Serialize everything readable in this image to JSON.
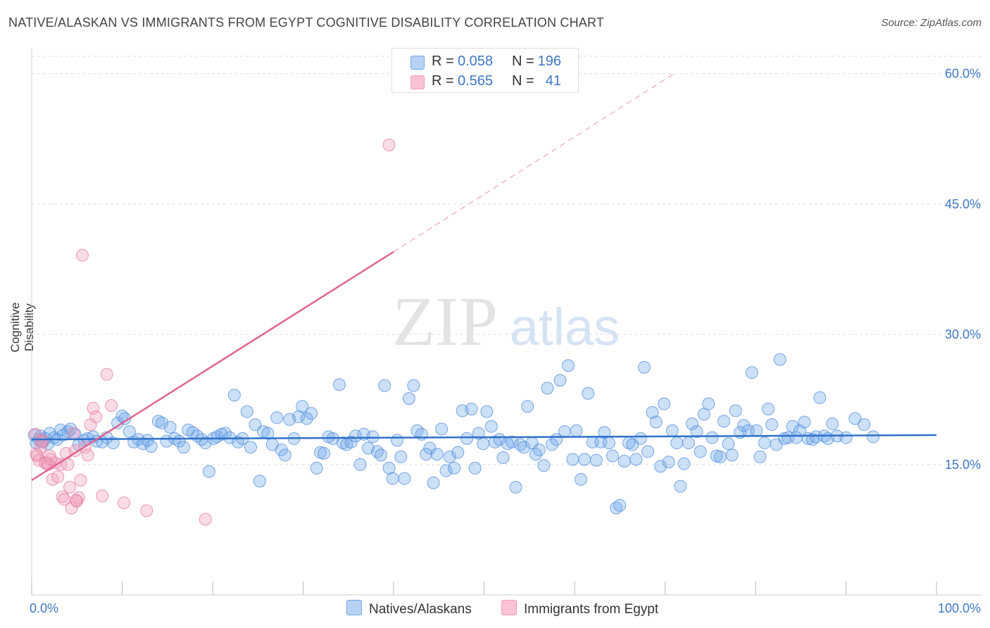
{
  "title": "NATIVE/ALASKAN VS IMMIGRANTS FROM EGYPT COGNITIVE DISABILITY CORRELATION CHART",
  "source": "Source: ZipAtlas.com",
  "watermark": {
    "zip": "ZIP",
    "atlas": "atlas"
  },
  "colors": {
    "blue": "#6ea6e8",
    "blue_line": "#2f72c9",
    "pink": "#f29bb8",
    "pink_line": "#e0648f",
    "grid": "#dddddd",
    "axis_text": "#3b78c4"
  },
  "legend_top": {
    "rows": [
      {
        "r_label": "R =",
        "r": "0.058",
        "n_label": "N =",
        "n": "196"
      },
      {
        "r_label": "R =",
        "r": "0.565",
        "n_label": "N =",
        "n": "41"
      }
    ]
  },
  "legend_bottom": [
    {
      "label": "Natives/Alaskans"
    },
    {
      "label": "Immigrants from Egypt"
    }
  ],
  "chart_data": {
    "type": "scatter",
    "title": "NATIVE/ALASKAN VS IMMIGRANTS FROM EGYPT COGNITIVE DISABILITY CORRELATION CHART",
    "xlabel": "",
    "ylabel": "Cognitive Disability",
    "xlim": [
      0,
      100
    ],
    "ylim": [
      0,
      62
    ],
    "x_tick_labels": [
      {
        "value": 0,
        "label": "0.0%"
      },
      {
        "value": 100,
        "label": "100.0%"
      }
    ],
    "y_tick_labels": [
      {
        "value": 15,
        "label": "15.0%"
      },
      {
        "value": 30,
        "label": "30.0%"
      },
      {
        "value": 45,
        "label": "45.0%"
      },
      {
        "value": 60,
        "label": "60.0%"
      }
    ],
    "series": [
      {
        "name": "Natives/Alaskans",
        "trend": {
          "x0": 0,
          "y0": 17.9,
          "x1": 100,
          "y1": 18.4
        },
        "points": [
          [
            0.3,
            18.4
          ],
          [
            0.5,
            17.5
          ],
          [
            0.8,
            17.9
          ],
          [
            1.0,
            18.3
          ],
          [
            1.2,
            17.6
          ],
          [
            1.5,
            18.0
          ],
          [
            1.8,
            17.4
          ],
          [
            2.0,
            18.6
          ],
          [
            2.5,
            18.1
          ],
          [
            2.8,
            17.9
          ],
          [
            3.2,
            19.0
          ],
          [
            3.5,
            18.4
          ],
          [
            4.0,
            18.8
          ],
          [
            4.3,
            19.1
          ],
          [
            4.8,
            18.5
          ],
          [
            5.2,
            17.3
          ],
          [
            5.8,
            17.8
          ],
          [
            6.2,
            18.0
          ],
          [
            6.8,
            18.2
          ],
          [
            7.2,
            17.7
          ],
          [
            7.8,
            17.6
          ],
          [
            8.3,
            18.1
          ],
          [
            9.0,
            17.5
          ],
          [
            9.5,
            19.8
          ],
          [
            10.0,
            20.6
          ],
          [
            10.3,
            20.3
          ],
          [
            10.8,
            18.8
          ],
          [
            11.3,
            17.6
          ],
          [
            11.8,
            17.9
          ],
          [
            12.3,
            17.4
          ],
          [
            12.8,
            17.8
          ],
          [
            13.2,
            17.1
          ],
          [
            14.0,
            20.0
          ],
          [
            14.4,
            19.8
          ],
          [
            14.9,
            17.7
          ],
          [
            15.3,
            19.3
          ],
          [
            15.8,
            18.0
          ],
          [
            16.3,
            17.7
          ],
          [
            16.8,
            17.0
          ],
          [
            17.3,
            19.0
          ],
          [
            17.8,
            18.7
          ],
          [
            18.3,
            18.3
          ],
          [
            18.8,
            17.9
          ],
          [
            19.2,
            17.5
          ],
          [
            19.6,
            14.2
          ],
          [
            20.1,
            18.0
          ],
          [
            20.5,
            18.2
          ],
          [
            21.0,
            18.5
          ],
          [
            21.4,
            18.6
          ],
          [
            21.9,
            18.1
          ],
          [
            22.4,
            23.0
          ],
          [
            22.8,
            17.6
          ],
          [
            23.3,
            18.0
          ],
          [
            23.8,
            21.1
          ],
          [
            24.2,
            17.0
          ],
          [
            24.7,
            19.6
          ],
          [
            25.2,
            13.1
          ],
          [
            25.6,
            18.8
          ],
          [
            26.1,
            18.6
          ],
          [
            26.6,
            17.3
          ],
          [
            27.1,
            20.4
          ],
          [
            27.6,
            16.7
          ],
          [
            28.0,
            16.1
          ],
          [
            28.5,
            20.2
          ],
          [
            29.0,
            18.0
          ],
          [
            29.5,
            20.5
          ],
          [
            29.9,
            21.7
          ],
          [
            30.4,
            20.3
          ],
          [
            30.9,
            20.9
          ],
          [
            31.5,
            14.6
          ],
          [
            31.9,
            16.4
          ],
          [
            32.3,
            16.3
          ],
          [
            32.8,
            18.2
          ],
          [
            33.3,
            18.0
          ],
          [
            34.0,
            24.2
          ],
          [
            34.4,
            17.5
          ],
          [
            34.8,
            17.3
          ],
          [
            35.3,
            17.6
          ],
          [
            35.8,
            18.3
          ],
          [
            36.3,
            15.0
          ],
          [
            36.7,
            18.5
          ],
          [
            37.2,
            16.9
          ],
          [
            37.7,
            18.2
          ],
          [
            38.2,
            16.5
          ],
          [
            38.6,
            16.1
          ],
          [
            39.0,
            24.1
          ],
          [
            39.5,
            14.6
          ],
          [
            39.9,
            13.4
          ],
          [
            40.4,
            17.8
          ],
          [
            40.8,
            15.9
          ],
          [
            41.2,
            13.4
          ],
          [
            41.7,
            22.6
          ],
          [
            42.2,
            24.1
          ],
          [
            42.6,
            18.9
          ],
          [
            43.1,
            18.5
          ],
          [
            43.6,
            16.2
          ],
          [
            44.0,
            16.9
          ],
          [
            44.4,
            12.9
          ],
          [
            44.8,
            16.2
          ],
          [
            45.3,
            19.1
          ],
          [
            45.8,
            14.3
          ],
          [
            46.2,
            15.9
          ],
          [
            46.7,
            14.6
          ],
          [
            47.1,
            16.4
          ],
          [
            47.6,
            21.2
          ],
          [
            48.1,
            18.0
          ],
          [
            48.6,
            21.4
          ],
          [
            49.0,
            14.6
          ],
          [
            49.4,
            18.6
          ],
          [
            49.9,
            17.4
          ],
          [
            50.3,
            21.1
          ],
          [
            50.8,
            19.4
          ],
          [
            51.2,
            17.6
          ],
          [
            51.7,
            17.9
          ],
          [
            52.1,
            15.8
          ],
          [
            52.6,
            17.4
          ],
          [
            53.1,
            17.6
          ],
          [
            53.5,
            12.4
          ],
          [
            54.0,
            17.3
          ],
          [
            54.4,
            17.0
          ],
          [
            54.8,
            21.7
          ],
          [
            55.3,
            17.5
          ],
          [
            55.7,
            16.2
          ],
          [
            56.1,
            16.7
          ],
          [
            56.6,
            14.9
          ],
          [
            57.0,
            23.8
          ],
          [
            57.5,
            17.3
          ],
          [
            58.0,
            17.9
          ],
          [
            58.4,
            24.7
          ],
          [
            58.9,
            18.8
          ],
          [
            59.3,
            26.4
          ],
          [
            59.8,
            15.6
          ],
          [
            60.2,
            18.9
          ],
          [
            60.7,
            13.3
          ],
          [
            61.1,
            15.6
          ],
          [
            61.5,
            23.2
          ],
          [
            62.0,
            17.6
          ],
          [
            62.4,
            15.5
          ],
          [
            62.9,
            17.6
          ],
          [
            63.3,
            18.7
          ],
          [
            63.8,
            17.5
          ],
          [
            64.2,
            16.0
          ],
          [
            64.6,
            10.0
          ],
          [
            65.0,
            10.3
          ],
          [
            65.5,
            15.4
          ],
          [
            66.0,
            17.5
          ],
          [
            66.4,
            17.3
          ],
          [
            66.8,
            15.6
          ],
          [
            67.3,
            18.0
          ],
          [
            67.7,
            26.2
          ],
          [
            68.1,
            16.5
          ],
          [
            68.6,
            21.0
          ],
          [
            69.0,
            19.9
          ],
          [
            69.5,
            14.8
          ],
          [
            69.9,
            22.0
          ],
          [
            70.4,
            15.3
          ],
          [
            70.8,
            18.9
          ],
          [
            71.3,
            17.5
          ],
          [
            71.7,
            12.5
          ],
          [
            72.1,
            15.1
          ],
          [
            72.6,
            17.5
          ],
          [
            73.0,
            19.7
          ],
          [
            73.5,
            18.8
          ],
          [
            73.9,
            16.5
          ],
          [
            74.3,
            20.8
          ],
          [
            74.8,
            22.0
          ],
          [
            75.2,
            18.1
          ],
          [
            75.7,
            16.0
          ],
          [
            76.1,
            15.9
          ],
          [
            76.5,
            20.0
          ],
          [
            77.0,
            17.4
          ],
          [
            77.4,
            16.1
          ],
          [
            77.8,
            21.2
          ],
          [
            78.3,
            18.7
          ],
          [
            78.7,
            19.5
          ],
          [
            79.2,
            18.9
          ],
          [
            79.6,
            25.6
          ],
          [
            80.1,
            18.9
          ],
          [
            80.5,
            15.9
          ],
          [
            81.0,
            17.5
          ],
          [
            81.4,
            21.4
          ],
          [
            81.8,
            19.6
          ],
          [
            82.3,
            17.3
          ],
          [
            82.7,
            27.1
          ],
          [
            83.2,
            18.0
          ],
          [
            83.6,
            18.1
          ],
          [
            84.1,
            19.4
          ],
          [
            84.5,
            18.1
          ],
          [
            84.9,
            18.9
          ],
          [
            85.4,
            19.9
          ],
          [
            85.8,
            18.0
          ],
          [
            86.3,
            17.9
          ],
          [
            86.7,
            18.2
          ],
          [
            87.1,
            22.7
          ],
          [
            87.6,
            18.3
          ],
          [
            88.0,
            18.0
          ],
          [
            88.5,
            19.7
          ],
          [
            89.0,
            18.3
          ],
          [
            90.0,
            18.1
          ],
          [
            91.0,
            20.3
          ],
          [
            92.0,
            19.6
          ],
          [
            93.0,
            18.2
          ]
        ]
      },
      {
        "name": "Immigrants from Egypt",
        "trend": {
          "x0": 0,
          "y0": 13.2,
          "x1": 40.0,
          "y1": 39.5,
          "dash_x1": 71.0,
          "dash_y1": 60.0
        },
        "points": [
          [
            0.4,
            18.5
          ],
          [
            0.6,
            16.0
          ],
          [
            0.8,
            15.5
          ],
          [
            1.0,
            17.0
          ],
          [
            1.2,
            17.8
          ],
          [
            1.5,
            15.2
          ],
          [
            1.8,
            15.0
          ],
          [
            2.0,
            16.0
          ],
          [
            2.3,
            13.3
          ],
          [
            2.6,
            15.2
          ],
          [
            2.9,
            13.6
          ],
          [
            3.2,
            15.0
          ],
          [
            3.4,
            11.3
          ],
          [
            3.6,
            11.0
          ],
          [
            3.8,
            16.3
          ],
          [
            4.0,
            15.0
          ],
          [
            4.2,
            12.4
          ],
          [
            4.4,
            10.0
          ],
          [
            4.6,
            18.6
          ],
          [
            4.8,
            16.6
          ],
          [
            5.0,
            10.8
          ],
          [
            5.2,
            11.2
          ],
          [
            5.4,
            13.2
          ],
          [
            5.6,
            39.1
          ],
          [
            5.9,
            17.0
          ],
          [
            6.2,
            16.1
          ],
          [
            6.5,
            19.6
          ],
          [
            6.8,
            21.5
          ],
          [
            7.1,
            20.5
          ],
          [
            7.8,
            11.4
          ],
          [
            8.3,
            25.4
          ],
          [
            8.8,
            21.8
          ],
          [
            10.2,
            10.6
          ],
          [
            12.7,
            9.7
          ],
          [
            19.2,
            8.7
          ],
          [
            39.5,
            51.8
          ],
          [
            1.1,
            17.6
          ],
          [
            0.5,
            16.2
          ],
          [
            1.7,
            15.2
          ],
          [
            2.1,
            15.6
          ],
          [
            4.9,
            10.9
          ]
        ]
      }
    ]
  }
}
